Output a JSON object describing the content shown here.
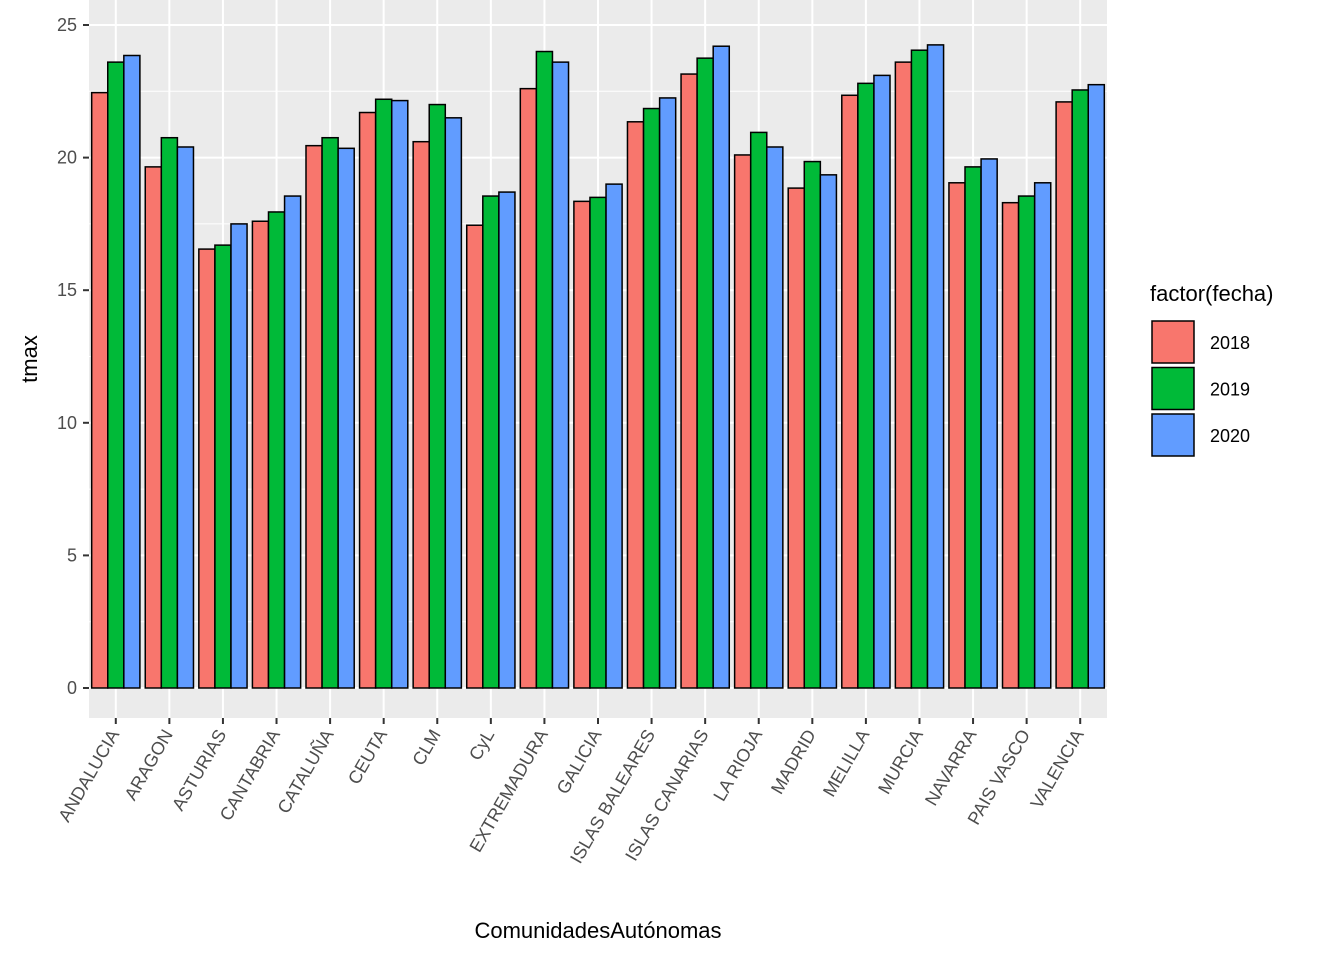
{
  "chart_data": {
    "type": "bar",
    "xlabel": "ComunidadesAutónomas",
    "ylabel": "tmax",
    "ylim": [
      -1.1,
      25.2
    ],
    "yticks": [
      0,
      5,
      10,
      15,
      20,
      25
    ],
    "grid": true,
    "legend_title": "factor(fecha)",
    "legend_position": "right",
    "categories": [
      "ANDALUCIA",
      "ARAGON",
      "ASTURIAS",
      "CANTABRIA",
      "CATALUÑA",
      "CEUTA",
      "CLM",
      "CyL",
      "EXTREMADURA",
      "GALICIA",
      "ISLAS BALEARES",
      "ISLAS CANARIAS",
      "LA RIOJA",
      "MADRID",
      "MELILLA",
      "MURCIA",
      "NAVARRA",
      "PAIS VASCO",
      "VALENCIA"
    ],
    "series": [
      {
        "name": "2018",
        "color": "#F8766D",
        "values": [
          22.45,
          19.65,
          16.55,
          17.6,
          20.45,
          21.7,
          20.6,
          17.45,
          22.6,
          18.35,
          21.35,
          23.15,
          20.1,
          18.85,
          22.35,
          23.6,
          19.05,
          18.3,
          22.1
        ]
      },
      {
        "name": "2019",
        "color": "#00BA38",
        "values": [
          23.6,
          20.75,
          16.7,
          17.95,
          20.75,
          22.2,
          22.0,
          18.55,
          24.0,
          18.5,
          21.85,
          23.75,
          20.95,
          19.85,
          22.8,
          24.05,
          19.65,
          18.55,
          22.55
        ]
      },
      {
        "name": "2020",
        "color": "#619CFF",
        "values": [
          23.85,
          20.4,
          17.5,
          18.55,
          20.35,
          22.15,
          21.5,
          18.7,
          23.6,
          19.0,
          22.25,
          24.2,
          20.4,
          19.35,
          23.1,
          24.25,
          19.95,
          19.05,
          22.75
        ]
      }
    ]
  }
}
